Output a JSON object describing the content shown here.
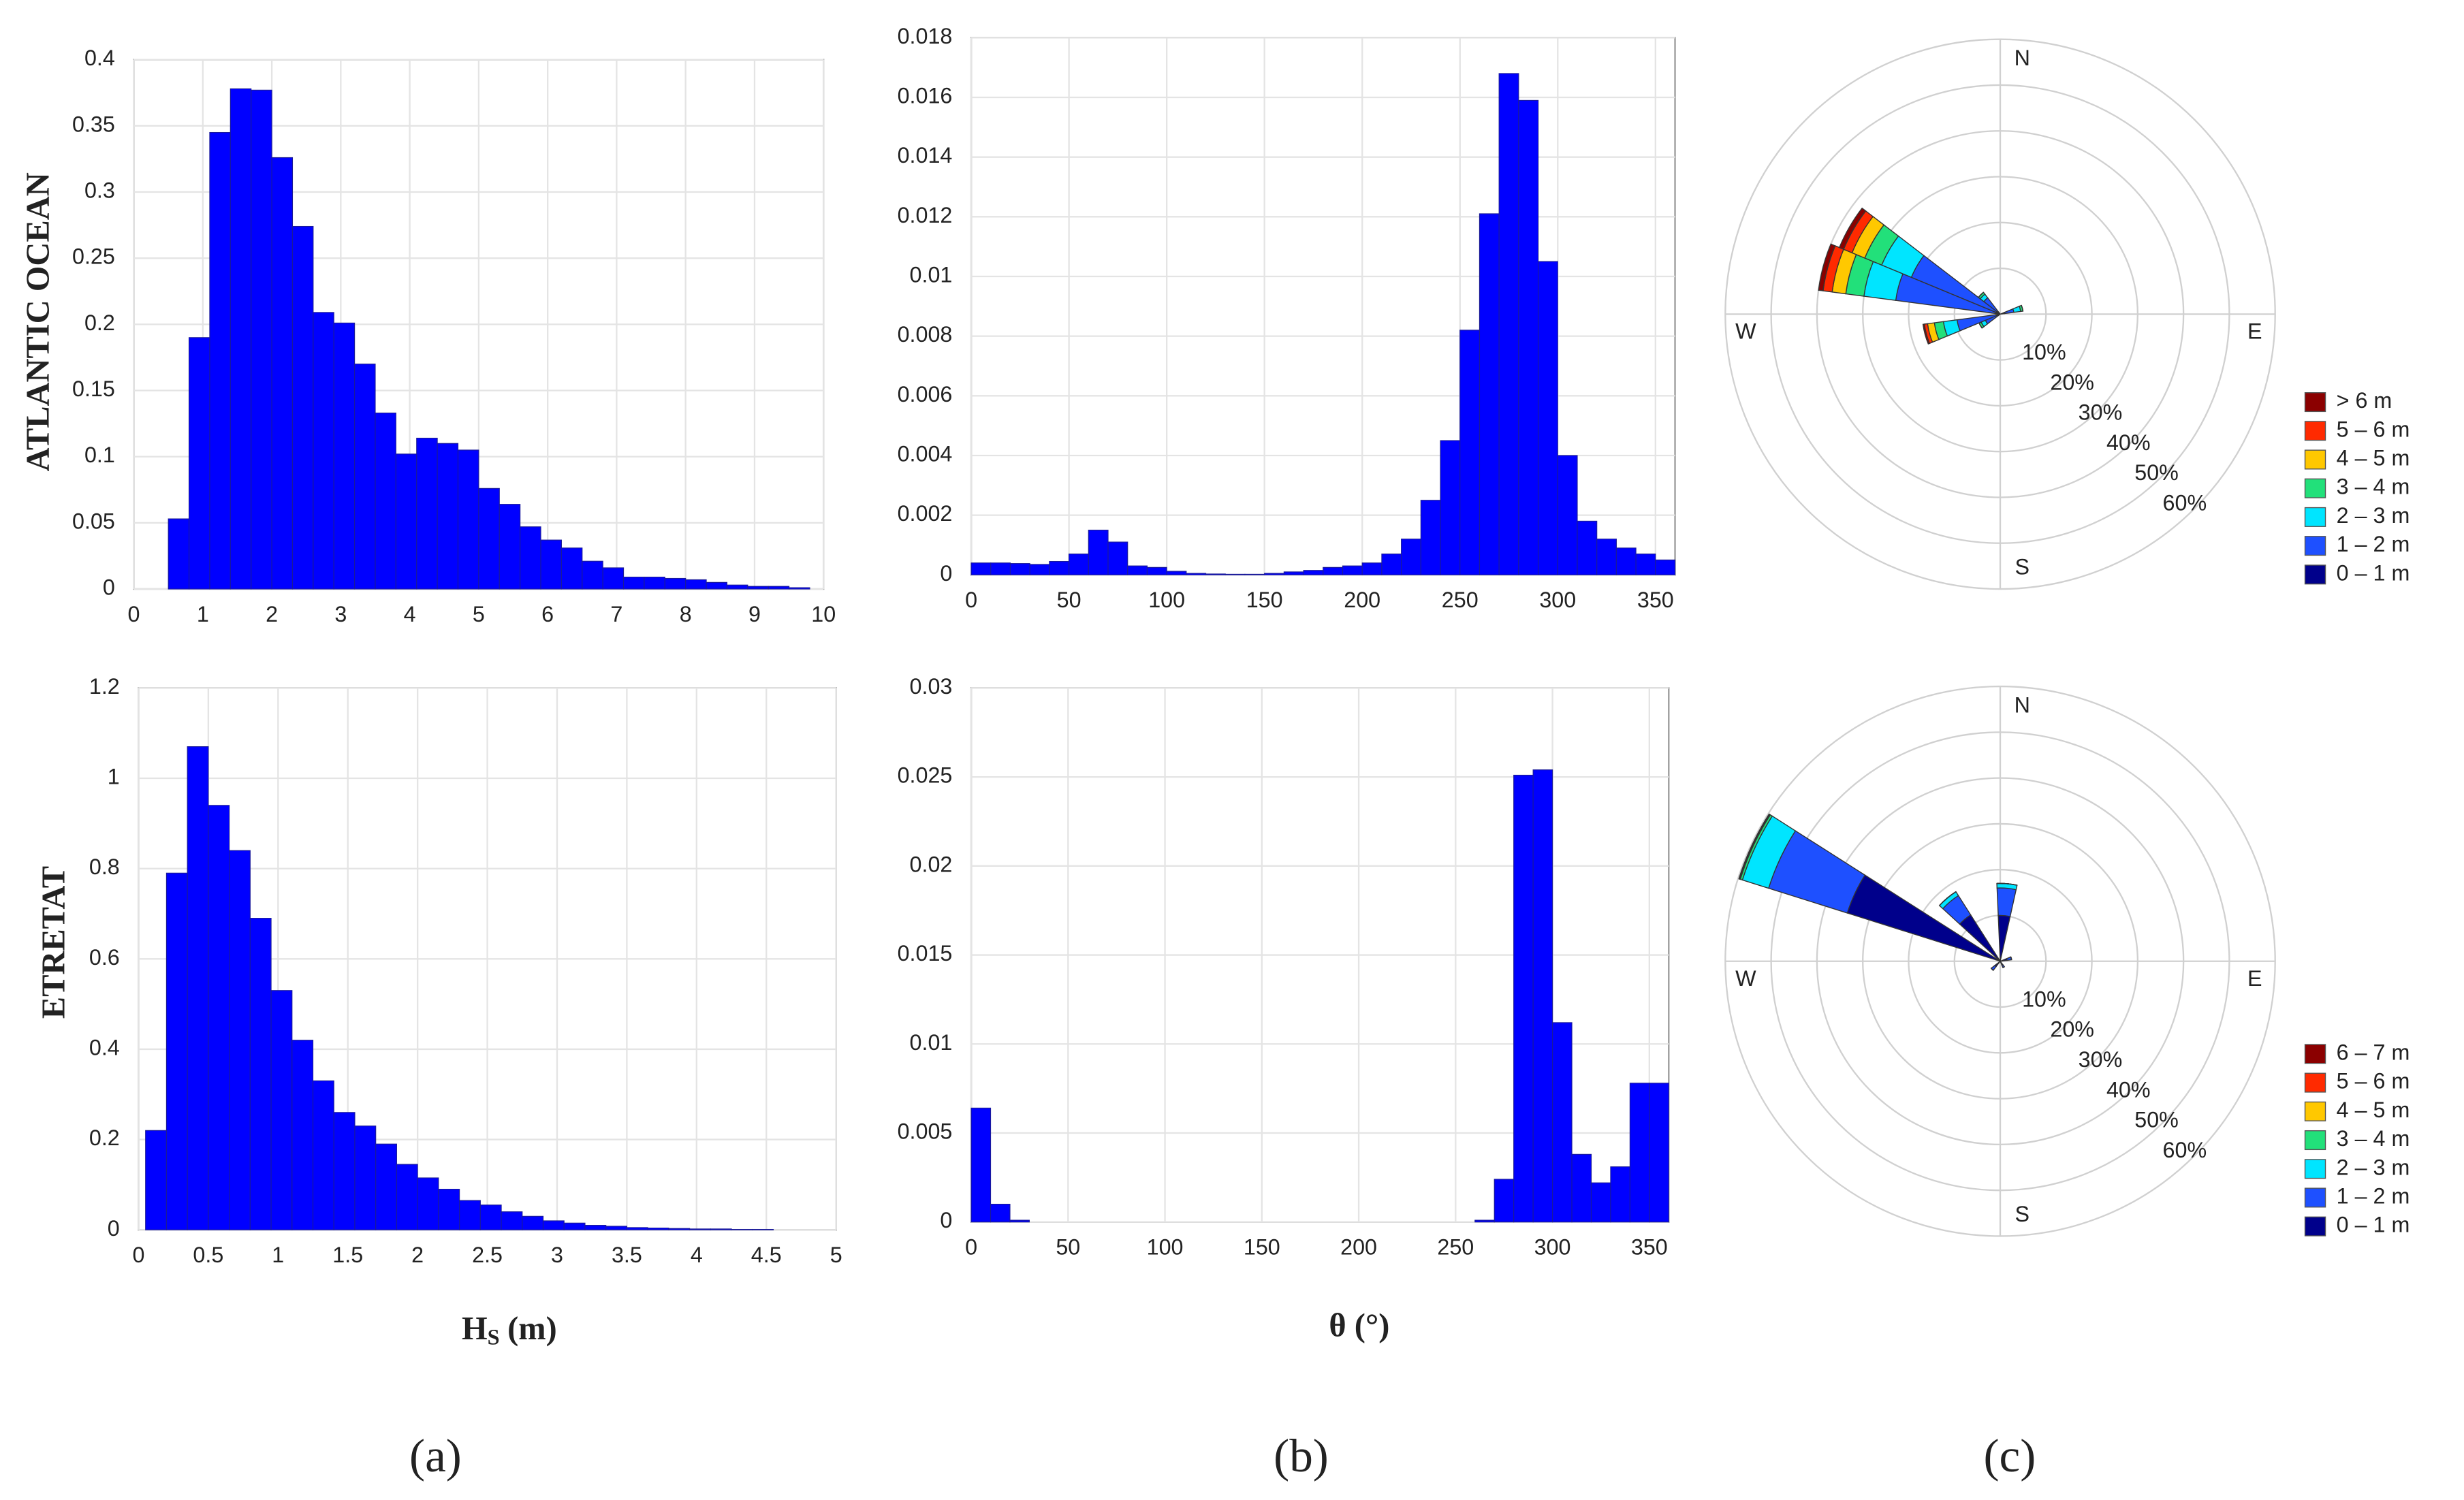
{
  "row_labels": [
    "ATLANTIC OCEAN",
    "ETRETAT"
  ],
  "x_labels": [
    {
      "main": "H",
      "sub": "S",
      "unit": "(m)"
    },
    {
      "main": "θ (°)"
    }
  ],
  "panel_labels": [
    "(a)",
    "(b)",
    "(c)"
  ],
  "chart_data": [
    {
      "type": "histogram",
      "bins": [
        0.5,
        0.8,
        1.1,
        1.4,
        1.7,
        2.0,
        2.3,
        2.6,
        2.9,
        3.2,
        3.5,
        3.8,
        4.1,
        4.4,
        4.7,
        5.0,
        5.3,
        5.6,
        5.9,
        6.2,
        6.5,
        6.8,
        7.1,
        7.4,
        7.7,
        8.0,
        8.3,
        8.6,
        8.9,
        9.2,
        9.5,
        9.8
      ],
      "values": [
        0.053,
        0.19,
        0.345,
        0.378,
        0.377,
        0.326,
        0.274,
        0.209,
        0.201,
        0.17,
        0.133,
        0.102,
        0.114,
        0.11,
        0.105,
        0.076,
        0.064,
        0.047,
        0.037,
        0.031,
        0.021,
        0.016,
        0.009,
        0.009,
        0.008,
        0.007,
        0.005,
        0.003,
        0.002,
        0.002,
        0.001
      ],
      "color": "#0000ff",
      "xlim": [
        0,
        10
      ],
      "xticks": [
        0,
        1,
        2,
        3,
        4,
        5,
        6,
        7,
        8,
        9,
        10
      ],
      "ylim": [
        0,
        0.4
      ],
      "yticks": [
        0,
        0.05,
        0.1,
        0.15,
        0.2,
        0.25,
        0.3,
        0.35,
        0.4
      ],
      "grid": true
    },
    {
      "type": "histogram",
      "bins": [
        0,
        10,
        20,
        30,
        40,
        50,
        60,
        70,
        80,
        90,
        100,
        110,
        120,
        130,
        140,
        150,
        160,
        170,
        180,
        190,
        200,
        210,
        220,
        230,
        240,
        250,
        260,
        270,
        280,
        290,
        300,
        310,
        320,
        330,
        340,
        350,
        360
      ],
      "values": [
        0.0004,
        0.0004,
        0.00038,
        0.00035,
        0.00045,
        0.0007,
        0.0015,
        0.0011,
        0.0003,
        0.00025,
        0.00012,
        5e-05,
        3e-05,
        2e-05,
        2e-05,
        5e-05,
        0.0001,
        0.00015,
        0.00025,
        0.0003,
        0.0004,
        0.0007,
        0.0012,
        0.0025,
        0.0045,
        0.0082,
        0.0121,
        0.0168,
        0.0159,
        0.0105,
        0.004,
        0.0018,
        0.0012,
        0.0009,
        0.0007,
        0.0005
      ],
      "color": "#0000ff",
      "xlim": [
        0,
        360
      ],
      "xticks": [
        0,
        50,
        100,
        150,
        200,
        250,
        300,
        350
      ],
      "ylim": [
        0,
        0.018
      ],
      "yticks": [
        0,
        0.002,
        0.004,
        0.006,
        0.008,
        0.01,
        0.012,
        0.014,
        0.016,
        0.018
      ],
      "grid": true
    },
    {
      "type": "windrose",
      "directions": [
        75,
        240,
        255,
        285,
        300,
        315
      ],
      "series": [
        {
          "name": "0 – 1 m",
          "color": "#00008b",
          "values": [
            1,
            0.5,
            0.5,
            1,
            1,
            0.5
          ]
        },
        {
          "name": "1 – 2 m",
          "color": "#1e50ff",
          "values": [
            2,
            3,
            9,
            22,
            20,
            4
          ]
        },
        {
          "name": "2 – 3 m",
          "color": "#00e5ff",
          "values": [
            1.5,
            1,
            3,
            7,
            7,
            1
          ]
        },
        {
          "name": "3 – 4 m",
          "color": "#22e07a",
          "values": [
            0.5,
            0.5,
            2,
            4,
            4,
            0.5
          ]
        },
        {
          "name": "4 – 5 m",
          "color": "#ffc800",
          "values": [
            0,
            0,
            1.5,
            3,
            3,
            0
          ]
        },
        {
          "name": "5 – 6 m",
          "color": "#ff2a00",
          "values": [
            0,
            0,
            0.7,
            2,
            2,
            0
          ]
        },
        {
          "name": "> 6 m",
          "color": "#8b0000",
          "values": [
            0,
            0,
            0.3,
            1,
            1,
            0
          ]
        }
      ],
      "rlim": [
        0,
        60
      ],
      "rticks": [
        {
          "value": 10,
          "label": "10%"
        },
        {
          "value": 20,
          "label": "20%"
        },
        {
          "value": 30,
          "label": "30%"
        },
        {
          "value": 40,
          "label": "40%"
        },
        {
          "value": 50,
          "label": "50%"
        },
        {
          "value": 60,
          "label": "60%"
        }
      ],
      "compass": [
        "N",
        "E",
        "S",
        "W"
      ]
    },
    {
      "type": "histogram",
      "bins": [
        0.05,
        0.2,
        0.35,
        0.5,
        0.65,
        0.8,
        0.95,
        1.1,
        1.25,
        1.4,
        1.55,
        1.7,
        1.85,
        2.0,
        2.15,
        2.3,
        2.45,
        2.6,
        2.75,
        2.9,
        3.05,
        3.2,
        3.35,
        3.5,
        3.65,
        3.8,
        3.95,
        4.1,
        4.25,
        4.4,
        4.55
      ],
      "values": [
        0.22,
        0.79,
        1.07,
        0.94,
        0.84,
        0.69,
        0.53,
        0.42,
        0.33,
        0.26,
        0.23,
        0.19,
        0.145,
        0.115,
        0.09,
        0.065,
        0.055,
        0.04,
        0.03,
        0.02,
        0.015,
        0.01,
        0.008,
        0.005,
        0.004,
        0.003,
        0.002,
        0.002,
        0.001,
        0.001
      ],
      "color": "#0000ff",
      "xlim": [
        0,
        5
      ],
      "xticks": [
        0,
        0.5,
        1,
        1.5,
        2,
        2.5,
        3,
        3.5,
        4,
        4.5,
        5
      ],
      "ylim": [
        0,
        1.2
      ],
      "yticks": [
        0,
        0.2,
        0.4,
        0.6,
        0.8,
        1,
        1.2
      ],
      "grid": true
    },
    {
      "type": "histogram",
      "bins": [
        0,
        10,
        20,
        30,
        40,
        50,
        60,
        70,
        80,
        90,
        100,
        110,
        120,
        130,
        140,
        150,
        160,
        170,
        180,
        190,
        200,
        210,
        220,
        230,
        240,
        250,
        260,
        270,
        280,
        290,
        300,
        310,
        320,
        330,
        340,
        350,
        360
      ],
      "values": [
        0.0064,
        0.001,
        0.0001,
        0,
        0,
        0,
        0,
        0,
        0,
        0,
        0,
        0,
        0,
        0,
        0,
        0,
        0,
        0,
        0,
        0,
        0,
        0,
        0,
        0,
        0,
        0,
        0.0001,
        0.0024,
        0.0251,
        0.0254,
        0.0112,
        0.0038,
        0.0022,
        0.0031,
        0.0078,
        0.0078
      ],
      "color": "#0000ff",
      "xlim": [
        0,
        360
      ],
      "xticks": [
        0,
        50,
        100,
        150,
        200,
        250,
        300,
        350
      ],
      "ylim": [
        0,
        0.03
      ],
      "yticks": [
        0,
        0.005,
        0.01,
        0.015,
        0.02,
        0.025,
        0.03
      ],
      "grid": true
    },
    {
      "type": "windrose",
      "directions": [
        5,
        75,
        150,
        225,
        295,
        320
      ],
      "series": [
        {
          "name": "0 – 1 m",
          "color": "#00008b",
          "values": [
            10,
            1.5,
            1,
            1.5,
            35,
            12
          ]
        },
        {
          "name": "1 – 2 m",
          "color": "#1e50ff",
          "values": [
            6,
            1,
            0.5,
            1,
            18,
            5
          ]
        },
        {
          "name": "2 – 3 m",
          "color": "#00e5ff",
          "values": [
            1,
            0,
            0,
            0,
            6,
            1
          ]
        },
        {
          "name": "3 – 4 m",
          "color": "#22e07a",
          "values": [
            0,
            0,
            0,
            0,
            0.5,
            0
          ]
        },
        {
          "name": "4 – 5 m",
          "color": "#ffc800",
          "values": [
            0,
            0,
            0,
            0,
            0.2,
            0
          ]
        },
        {
          "name": "5 – 6 m",
          "color": "#ff2a00",
          "values": [
            0,
            0,
            0,
            0,
            0.1,
            0
          ]
        },
        {
          "name": "6 – 7 m",
          "color": "#8b0000",
          "values": [
            0,
            0,
            0,
            0,
            0,
            0
          ]
        }
      ],
      "rlim": [
        0,
        60
      ],
      "rticks": [
        {
          "value": 10,
          "label": "10%"
        },
        {
          "value": 20,
          "label": "20%"
        },
        {
          "value": 30,
          "label": "30%"
        },
        {
          "value": 40,
          "label": "40%"
        },
        {
          "value": 50,
          "label": "50%"
        },
        {
          "value": 60,
          "label": "60%"
        }
      ],
      "compass": [
        "N",
        "E",
        "S",
        "W"
      ]
    }
  ]
}
